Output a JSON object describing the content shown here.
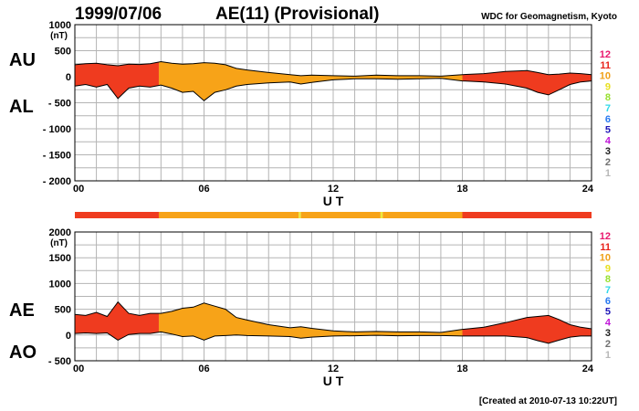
{
  "header": {
    "date": "1999/07/06",
    "title": "AE(11) (Provisional)",
    "source": "WDC for Geomagnetism, Kyoto"
  },
  "footer": {
    "created": "[Created at 2010-07-13 10:22UT]"
  },
  "station_count_legend": {
    "items": [
      {
        "label": "12",
        "color": "#e8186e"
      },
      {
        "label": "11",
        "color": "#e8241c"
      },
      {
        "label": "10",
        "color": "#f0a018"
      },
      {
        "label": "9",
        "color": "#e8e020"
      },
      {
        "label": "8",
        "color": "#98e030"
      },
      {
        "label": "7",
        "color": "#30d8e8"
      },
      {
        "label": "6",
        "color": "#2878f0"
      },
      {
        "label": "5",
        "color": "#2018b8"
      },
      {
        "label": "4",
        "color": "#c018d8"
      },
      {
        "label": "3",
        "color": "#202020"
      },
      {
        "label": "2",
        "color": "#707070"
      },
      {
        "label": "1",
        "color": "#b8b8b8"
      }
    ]
  },
  "colors": {
    "count_11": "#ef3b1f",
    "count_10": "#f7a318",
    "count_9": "#ecea3a",
    "grid": "#b4b4b4"
  },
  "chart_data": [
    {
      "type": "area",
      "panel": "AU/AL",
      "series_labels": [
        "AU",
        "AL"
      ],
      "unit_label": "(nT)",
      "xlabel": "U T",
      "ylabel": "",
      "xlim": [
        0,
        24
      ],
      "ylim": [
        -2000,
        1000
      ],
      "x_ticks": [
        0,
        6,
        12,
        18,
        24
      ],
      "x_tick_labels": [
        "00",
        "06",
        "12",
        "18",
        "24"
      ],
      "y_ticks": [
        1000,
        500,
        0,
        -500,
        -1000,
        -1500,
        -2000
      ],
      "y_tick_labels": [
        "1000",
        "500",
        "0",
        "- 500",
        "- 1000",
        "- 1500",
        "- 2000"
      ],
      "grid": true,
      "x": [
        0,
        0.5,
        1,
        1.5,
        2,
        2.5,
        3,
        3.5,
        4,
        4.5,
        5,
        5.5,
        6,
        6.5,
        7,
        7.5,
        8,
        9,
        10,
        10.5,
        11,
        12,
        13,
        14,
        15,
        16,
        17,
        18,
        19,
        20,
        21,
        21.5,
        22,
        22.5,
        23,
        23.5,
        24
      ],
      "series": [
        {
          "name": "AU",
          "values": [
            230,
            250,
            260,
            230,
            210,
            240,
            235,
            250,
            290,
            260,
            240,
            250,
            270,
            260,
            230,
            160,
            130,
            80,
            40,
            20,
            30,
            20,
            10,
            30,
            20,
            20,
            10,
            40,
            60,
            100,
            120,
            80,
            40,
            50,
            70,
            60,
            40
          ]
        },
        {
          "name": "AL",
          "values": [
            -180,
            -150,
            -200,
            -150,
            -420,
            -220,
            -180,
            -200,
            -160,
            -220,
            -300,
            -280,
            -460,
            -300,
            -250,
            -180,
            -150,
            -120,
            -100,
            -140,
            -110,
            -60,
            -40,
            -40,
            -50,
            -40,
            -30,
            -80,
            -100,
            -140,
            -220,
            -300,
            -350,
            -250,
            -150,
            -100,
            -80
          ]
        }
      ],
      "fill_segments": [
        {
          "from": 0,
          "to": 3.9,
          "count": "11"
        },
        {
          "from": 3.9,
          "to": 18.0,
          "count": "10"
        },
        {
          "from": 18.0,
          "to": 24,
          "count": "11"
        }
      ]
    },
    {
      "type": "area",
      "panel": "AE/AO",
      "series_labels": [
        "AE",
        "AO"
      ],
      "unit_label": "(nT)",
      "xlabel": "U T",
      "ylabel": "",
      "xlim": [
        0,
        24
      ],
      "ylim": [
        -500,
        2000
      ],
      "x_ticks": [
        0,
        6,
        12,
        18,
        24
      ],
      "x_tick_labels": [
        "00",
        "06",
        "12",
        "18",
        "24"
      ],
      "y_ticks": [
        2000,
        1500,
        1000,
        500,
        0,
        -500
      ],
      "y_tick_labels": [
        "2000",
        "1500",
        "1000",
        "500",
        "0",
        "- 500"
      ],
      "grid": true,
      "x": [
        0,
        0.5,
        1,
        1.5,
        2,
        2.5,
        3,
        3.5,
        4,
        4.5,
        5,
        5.5,
        6,
        6.5,
        7,
        7.5,
        8,
        9,
        10,
        10.5,
        11,
        12,
        13,
        14,
        15,
        16,
        17,
        18,
        19,
        20,
        21,
        21.5,
        22,
        22.5,
        23,
        23.5,
        24
      ],
      "series": [
        {
          "name": "AE",
          "values": [
            400,
            380,
            440,
            360,
            640,
            420,
            380,
            420,
            420,
            460,
            520,
            540,
            620,
            560,
            500,
            340,
            290,
            200,
            140,
            160,
            130,
            80,
            60,
            70,
            60,
            60,
            50,
            110,
            150,
            240,
            340,
            360,
            380,
            300,
            200,
            150,
            120
          ]
        },
        {
          "name": "AO",
          "values": [
            30,
            40,
            30,
            40,
            -100,
            10,
            30,
            30,
            60,
            20,
            -30,
            -20,
            -100,
            -20,
            -10,
            0,
            -10,
            -20,
            -30,
            -60,
            -40,
            -20,
            -15,
            -5,
            -15,
            -10,
            -10,
            -20,
            -20,
            -20,
            -50,
            -110,
            -160,
            -100,
            -40,
            -20,
            -20
          ]
        }
      ],
      "fill_segments": [
        {
          "from": 0,
          "to": 3.9,
          "count": "11"
        },
        {
          "from": 3.9,
          "to": 18.0,
          "count": "10"
        },
        {
          "from": 18.0,
          "to": 24,
          "count": "11"
        }
      ]
    }
  ],
  "station_count_bar": {
    "segments": [
      {
        "from": 0,
        "to": 3.9,
        "count": "11"
      },
      {
        "from": 3.9,
        "to": 10.4,
        "count": "10"
      },
      {
        "from": 10.4,
        "to": 10.5,
        "count": "9"
      },
      {
        "from": 10.5,
        "to": 14.2,
        "count": "10"
      },
      {
        "from": 14.2,
        "to": 14.3,
        "count": "9"
      },
      {
        "from": 14.3,
        "to": 18.0,
        "count": "10"
      },
      {
        "from": 18.0,
        "to": 24,
        "count": "11"
      }
    ]
  }
}
